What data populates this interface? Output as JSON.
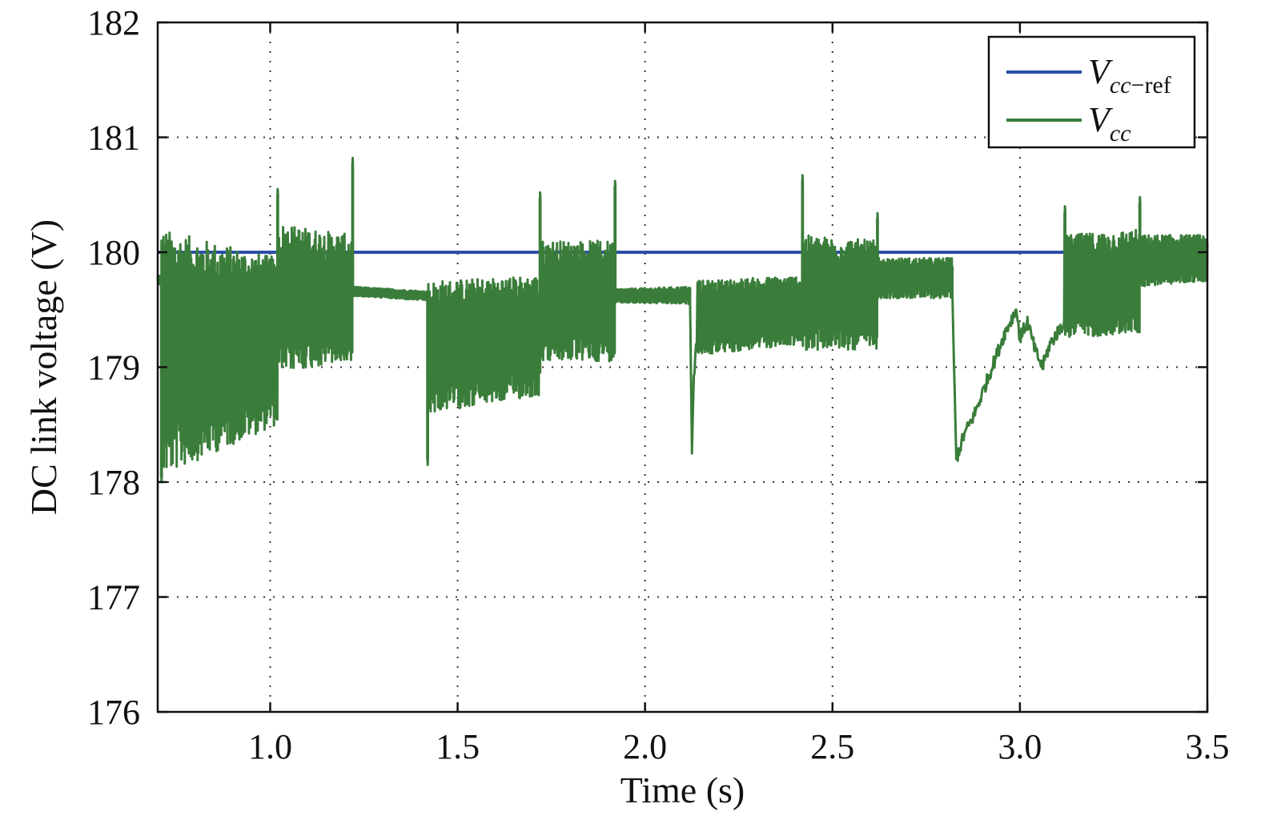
{
  "chart_data": {
    "type": "line",
    "xlabel": "Time (s)",
    "ylabel": "DC link voltage (V)",
    "xlim": [
      0.7,
      3.5
    ],
    "ylim": [
      176,
      182
    ],
    "xticks": [
      1.0,
      1.5,
      2.0,
      2.5,
      3.0,
      3.5
    ],
    "xtick_labels": [
      "1.0",
      "1.5",
      "2.0",
      "2.5",
      "3.0",
      "3.5"
    ],
    "yticks": [
      176,
      177,
      178,
      179,
      180,
      181,
      182
    ],
    "ytick_labels": [
      "176",
      "177",
      "178",
      "179",
      "180",
      "181",
      "182"
    ],
    "grid": true,
    "legend_position": "top-right",
    "series": [
      {
        "name": "V_cc-ref",
        "legend_main": "V",
        "legend_sub": "cc",
        "legend_sub_extra": "−ref",
        "color": "#2b4fa8",
        "x": [
          0.7,
          3.5
        ],
        "y": [
          180.0,
          180.0
        ]
      },
      {
        "name": "V_cc",
        "legend_main": "V",
        "legend_sub": "cc",
        "legend_sub_extra": "",
        "color": "#3a7d3a",
        "segments": [
          {
            "x0": 0.7,
            "x1": 0.71,
            "lo_start": 179.72,
            "lo_end": 179.72,
            "hi_start": 179.8,
            "hi_end": 179.8
          },
          {
            "x0": 0.71,
            "x1": 1.02,
            "lo_start": 178.05,
            "lo_end": 178.5,
            "hi_start": 180.2,
            "hi_end": 179.95
          },
          {
            "x0": 1.02,
            "x1": 1.22,
            "lo_start": 178.95,
            "lo_end": 179.05,
            "hi_start": 180.25,
            "hi_end": 180.15
          },
          {
            "x0": 1.22,
            "x1": 1.42,
            "lo_start": 179.62,
            "lo_end": 179.58,
            "hi_start": 179.7,
            "hi_end": 179.66
          },
          {
            "x0": 1.42,
            "x1": 1.72,
            "lo_start": 178.6,
            "lo_end": 178.75,
            "hi_start": 179.75,
            "hi_end": 179.8
          },
          {
            "x0": 1.72,
            "x1": 1.92,
            "lo_start": 179.05,
            "lo_end": 179.05,
            "hi_start": 180.1,
            "hi_end": 180.1
          },
          {
            "x0": 1.92,
            "x1": 2.12,
            "lo_start": 179.56,
            "lo_end": 179.55,
            "hi_start": 179.68,
            "hi_end": 179.7
          },
          {
            "x0": 2.14,
            "x1": 2.42,
            "lo_start": 179.1,
            "lo_end": 179.2,
            "hi_start": 179.75,
            "hi_end": 179.8
          },
          {
            "x0": 2.42,
            "x1": 2.62,
            "lo_start": 179.15,
            "lo_end": 179.15,
            "hi_start": 180.15,
            "hi_end": 180.1
          },
          {
            "x0": 2.62,
            "x1": 2.82,
            "lo_start": 179.6,
            "lo_end": 179.6,
            "hi_start": 179.95,
            "hi_end": 179.95
          },
          {
            "x0": 3.12,
            "x1": 3.32,
            "lo_start": 179.25,
            "lo_end": 179.3,
            "hi_start": 180.15,
            "hi_end": 180.2
          },
          {
            "x0": 3.32,
            "x1": 3.5,
            "lo_start": 179.7,
            "lo_end": 179.75,
            "hi_start": 180.15,
            "hi_end": 180.15
          }
        ],
        "recoveries": [
          {
            "x": [
              2.12,
              2.125,
              2.13,
              2.14
            ],
            "y": [
              179.55,
              178.3,
              178.9,
              179.3
            ]
          },
          {
            "x": [
              2.82,
              2.83,
              2.85,
              2.88,
              2.92,
              2.96,
              2.99,
              3.0,
              3.02,
              3.04,
              3.06,
              3.08,
              3.1,
              3.12
            ],
            "y": [
              179.6,
              178.2,
              178.4,
              178.6,
              178.95,
              179.3,
              179.5,
              179.25,
              179.4,
              179.15,
              179.0,
              179.2,
              179.3,
              179.4
            ]
          }
        ],
        "spikes": [
          {
            "x": 0.71,
            "y": 178.0
          },
          {
            "x": 1.02,
            "y": 180.55
          },
          {
            "x": 1.22,
            "y": 180.82
          },
          {
            "x": 1.42,
            "y": 178.15
          },
          {
            "x": 1.72,
            "y": 180.52
          },
          {
            "x": 1.92,
            "y": 180.62
          },
          {
            "x": 2.42,
            "y": 180.67
          },
          {
            "x": 2.62,
            "y": 180.34
          },
          {
            "x": 3.12,
            "y": 180.4
          },
          {
            "x": 3.32,
            "y": 180.48
          }
        ]
      }
    ]
  }
}
